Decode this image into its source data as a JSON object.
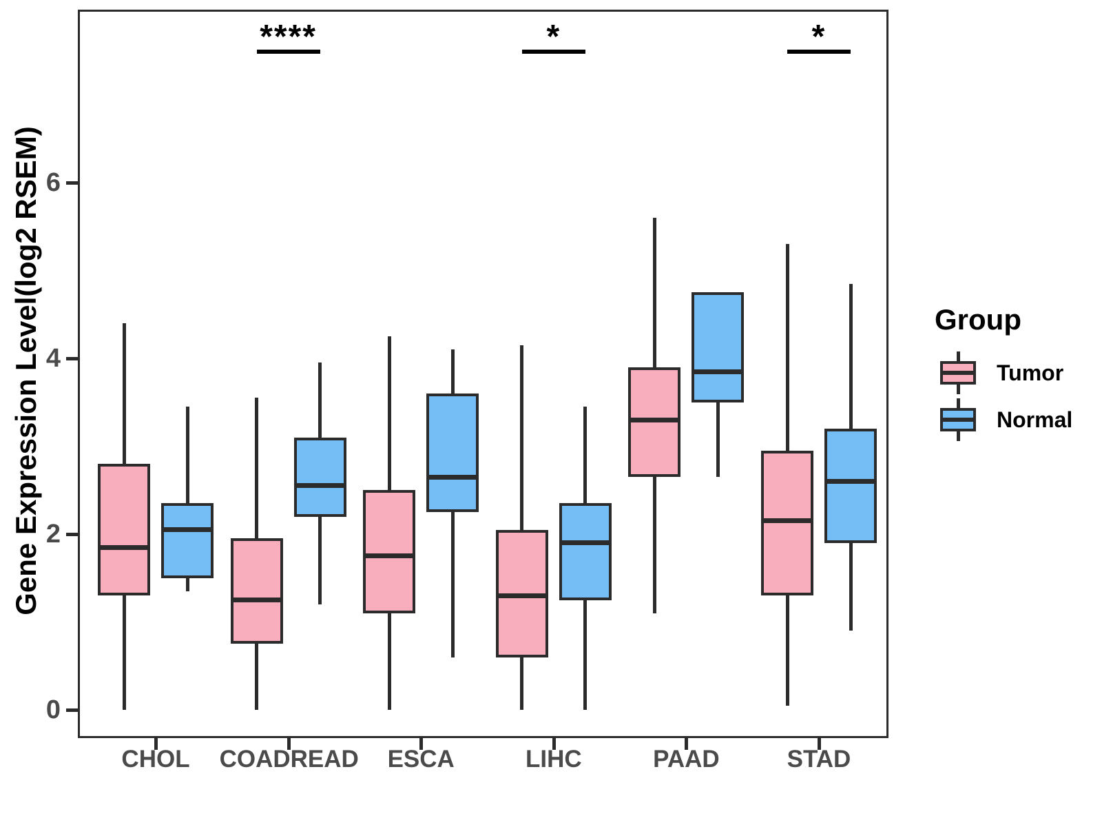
{
  "chart_data": {
    "type": "boxplot",
    "title": "",
    "xlabel": "",
    "ylabel": "Gene Expression Level(log2 RSEM)",
    "categories": [
      "CHOL",
      "COADREAD",
      "ESCA",
      "LIHC",
      "PAAD",
      "STAD"
    ],
    "y_ticks": [
      0,
      2,
      4,
      6
    ],
    "ylim": [
      -0.35,
      7.95
    ],
    "grid": false,
    "legend": {
      "title": "Group",
      "position": "right",
      "items": [
        {
          "label": "Tumor",
          "color": "#F9AEBE"
        },
        {
          "label": "Normal",
          "color": "#74BEF5"
        }
      ]
    },
    "series": [
      {
        "name": "Tumor",
        "color": "#F9AEBE",
        "boxes": [
          {
            "category": "CHOL",
            "min": 0.0,
            "q1": 1.3,
            "median": 1.85,
            "q3": 2.8,
            "max": 4.4
          },
          {
            "category": "COADREAD",
            "min": 0.0,
            "q1": 0.75,
            "median": 1.25,
            "q3": 1.95,
            "max": 3.55
          },
          {
            "category": "ESCA",
            "min": 0.0,
            "q1": 1.1,
            "median": 1.75,
            "q3": 2.5,
            "max": 4.25
          },
          {
            "category": "LIHC",
            "min": 0.0,
            "q1": 0.6,
            "median": 1.3,
            "q3": 2.05,
            "max": 4.15
          },
          {
            "category": "PAAD",
            "min": 1.1,
            "q1": 2.65,
            "median": 3.3,
            "q3": 3.9,
            "max": 5.6
          },
          {
            "category": "STAD",
            "min": 0.05,
            "q1": 1.3,
            "median": 2.15,
            "q3": 2.95,
            "max": 5.3
          }
        ]
      },
      {
        "name": "Normal",
        "color": "#74BEF5",
        "boxes": [
          {
            "category": "CHOL",
            "min": 1.35,
            "q1": 1.5,
            "median": 2.05,
            "q3": 2.35,
            "max": 3.45
          },
          {
            "category": "COADREAD",
            "min": 1.2,
            "q1": 2.2,
            "median": 2.55,
            "q3": 3.1,
            "max": 3.95
          },
          {
            "category": "ESCA",
            "min": 0.6,
            "q1": 2.25,
            "median": 2.65,
            "q3": 3.6,
            "max": 4.1
          },
          {
            "category": "LIHC",
            "min": 0.0,
            "q1": 1.25,
            "median": 1.9,
            "q3": 2.35,
            "max": 3.45
          },
          {
            "category": "PAAD",
            "min": 2.65,
            "q1": 3.5,
            "median": 3.85,
            "q3": 4.75,
            "max": 4.75
          },
          {
            "category": "STAD",
            "min": 0.9,
            "q1": 1.9,
            "median": 2.6,
            "q3": 3.2,
            "max": 4.85
          }
        ]
      }
    ],
    "significance": [
      {
        "category": "COADREAD",
        "label": "****"
      },
      {
        "category": "LIHC",
        "label": "*"
      },
      {
        "category": "STAD",
        "label": "*"
      }
    ]
  }
}
